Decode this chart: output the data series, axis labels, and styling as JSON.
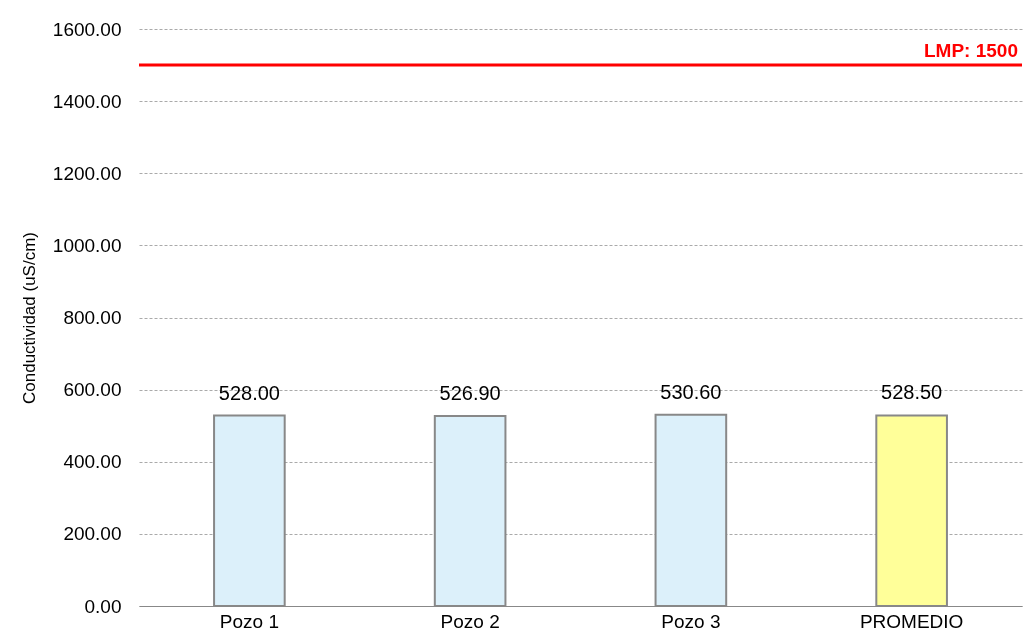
{
  "chart_data": {
    "type": "bar",
    "ylabel": "Conductividad (uS/cm)",
    "categories": [
      "Pozo 1",
      "Pozo 2",
      "Pozo 3",
      "PROMEDIO"
    ],
    "values": [
      528.0,
      526.9,
      530.6,
      528.5
    ],
    "value_labels": [
      "528.00",
      "526.90",
      "530.60",
      "528.50"
    ],
    "colors": [
      "#dcf0fa",
      "#dcf0fa",
      "#dcf0fa",
      "#ffff99"
    ],
    "ylim": [
      0,
      1600
    ],
    "yticks": [
      {
        "value": 0,
        "label": "0.00"
      },
      {
        "value": 200,
        "label": "200.00"
      },
      {
        "value": 400,
        "label": "400.00"
      },
      {
        "value": 600,
        "label": "600.00"
      },
      {
        "value": 800,
        "label": "800.00"
      },
      {
        "value": 1000,
        "label": "1000.00"
      },
      {
        "value": 1200,
        "label": "1200.00"
      },
      {
        "value": 1400,
        "label": "1400.00"
      },
      {
        "value": 1600,
        "label": "1600.00"
      }
    ],
    "ref_lines": [
      {
        "axis": "y",
        "value": 1500,
        "label": "LMP: 1500",
        "color": "#ff0000"
      }
    ],
    "grid": "y"
  }
}
